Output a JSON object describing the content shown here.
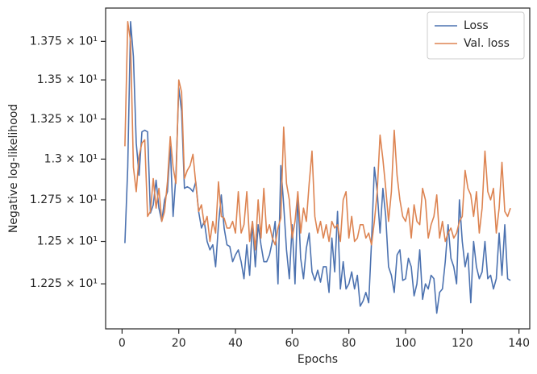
{
  "chart_data": {
    "type": "line",
    "xlabel": "Epochs",
    "ylabel": "Negative log-likelihood",
    "yscale": "log",
    "legend": "upper right",
    "grid": false,
    "xlim": [
      -5.8,
      143.8
    ],
    "xticks": [
      0,
      20,
      40,
      60,
      80,
      100,
      120,
      140
    ],
    "ylim": [
      11.99,
      13.97
    ],
    "yticks": [
      {
        "value": 12.25,
        "label": "1.225 × 10¹"
      },
      {
        "value": 12.5,
        "label": "1.25 × 10¹"
      },
      {
        "value": 12.75,
        "label": "1.275 × 10¹"
      },
      {
        "value": 13.0,
        "label": "1.3 × 10¹"
      },
      {
        "value": 13.25,
        "label": "1.325 × 10¹"
      },
      {
        "value": 13.5,
        "label": "1.35 × 10¹"
      },
      {
        "value": 13.75,
        "label": "1.375 × 10¹"
      }
    ],
    "x": [
      1,
      2,
      3,
      4,
      5,
      6,
      7,
      8,
      9,
      10,
      11,
      12,
      13,
      14,
      15,
      16,
      17,
      18,
      19,
      20,
      21,
      22,
      23,
      24,
      25,
      26,
      27,
      28,
      29,
      30,
      31,
      32,
      33,
      34,
      35,
      36,
      37,
      38,
      39,
      40,
      41,
      42,
      43,
      44,
      45,
      46,
      47,
      48,
      49,
      50,
      51,
      52,
      53,
      54,
      55,
      56,
      57,
      58,
      59,
      60,
      61,
      62,
      63,
      64,
      65,
      66,
      67,
      68,
      69,
      70,
      71,
      72,
      73,
      74,
      75,
      76,
      77,
      78,
      79,
      80,
      81,
      82,
      83,
      84,
      85,
      86,
      87,
      88,
      89,
      90,
      91,
      92,
      93,
      94,
      95,
      96,
      97,
      98,
      99,
      100,
      101,
      102,
      103,
      104,
      105,
      106,
      107,
      108,
      109,
      110,
      111,
      112,
      113,
      114,
      115,
      116,
      117,
      118,
      119,
      120,
      121,
      122,
      123,
      124,
      125,
      126,
      127,
      128,
      129,
      130,
      131,
      132,
      133,
      134,
      135,
      136,
      137
    ],
    "series": [
      {
        "name": "Loss",
        "color": "#4c72b0",
        "values": [
          12.49,
          12.95,
          13.88,
          13.65,
          13.1,
          12.9,
          13.17,
          13.18,
          13.17,
          12.67,
          12.72,
          12.87,
          12.7,
          12.62,
          12.75,
          12.8,
          13.08,
          12.65,
          12.9,
          13.45,
          13.3,
          12.82,
          12.83,
          12.82,
          12.8,
          12.86,
          12.68,
          12.58,
          12.62,
          12.5,
          12.45,
          12.48,
          12.35,
          12.6,
          12.78,
          12.58,
          12.48,
          12.47,
          12.38,
          12.42,
          12.45,
          12.38,
          12.28,
          12.48,
          12.3,
          12.62,
          12.35,
          12.6,
          12.48,
          12.38,
          12.38,
          12.42,
          12.5,
          12.62,
          12.25,
          12.96,
          12.72,
          12.45,
          12.28,
          12.6,
          12.25,
          12.78,
          12.4,
          12.28,
          12.46,
          12.55,
          12.32,
          12.27,
          12.33,
          12.26,
          12.35,
          12.35,
          12.2,
          12.52,
          12.32,
          12.68,
          12.22,
          12.38,
          12.22,
          12.25,
          12.32,
          12.22,
          12.3,
          12.12,
          12.15,
          12.2,
          12.14,
          12.5,
          12.95,
          12.8,
          12.55,
          12.82,
          12.65,
          12.35,
          12.3,
          12.2,
          12.42,
          12.45,
          12.27,
          12.28,
          12.4,
          12.35,
          12.18,
          12.25,
          12.45,
          12.16,
          12.25,
          12.22,
          12.3,
          12.28,
          12.08,
          12.2,
          12.22,
          12.38,
          12.6,
          12.4,
          12.35,
          12.25,
          12.75,
          12.5,
          12.35,
          12.43,
          12.14,
          12.5,
          12.35,
          12.28,
          12.32,
          12.5,
          12.28,
          12.3,
          12.22,
          12.28,
          12.55,
          12.3,
          12.6,
          12.28,
          12.27
        ]
      },
      {
        "name": "Val. loss",
        "color": "#dd8452",
        "values": [
          13.08,
          13.88,
          13.75,
          12.95,
          12.8,
          13.02,
          13.1,
          13.12,
          12.65,
          12.68,
          12.88,
          12.7,
          12.82,
          12.62,
          12.68,
          12.86,
          13.14,
          12.95,
          12.85,
          13.5,
          13.42,
          12.88,
          12.93,
          12.96,
          13.03,
          12.85,
          12.68,
          12.72,
          12.6,
          12.65,
          12.5,
          12.62,
          12.55,
          12.86,
          12.65,
          12.64,
          12.58,
          12.58,
          12.62,
          12.55,
          12.8,
          12.55,
          12.6,
          12.8,
          12.5,
          12.62,
          12.45,
          12.75,
          12.52,
          12.82,
          12.55,
          12.6,
          12.52,
          12.48,
          12.58,
          12.64,
          13.2,
          12.85,
          12.75,
          12.52,
          12.62,
          12.8,
          12.55,
          12.7,
          12.62,
          12.85,
          13.05,
          12.65,
          12.55,
          12.62,
          12.52,
          12.6,
          12.5,
          12.62,
          12.58,
          12.6,
          12.5,
          12.75,
          12.8,
          12.52,
          12.65,
          12.5,
          12.52,
          12.6,
          12.6,
          12.52,
          12.55,
          12.48,
          12.62,
          12.8,
          13.15,
          13.0,
          12.82,
          12.62,
          12.8,
          13.18,
          12.9,
          12.75,
          12.65,
          12.62,
          12.7,
          12.52,
          12.72,
          12.62,
          12.6,
          12.82,
          12.75,
          12.52,
          12.6,
          12.65,
          12.78,
          12.52,
          12.62,
          12.5,
          12.55,
          12.58,
          12.52,
          12.55,
          12.62,
          12.65,
          12.93,
          12.82,
          12.78,
          12.65,
          12.8,
          12.55,
          12.7,
          13.05,
          12.8,
          12.75,
          12.82,
          12.55,
          12.7,
          12.98,
          12.68,
          12.65,
          12.7
        ]
      }
    ]
  }
}
